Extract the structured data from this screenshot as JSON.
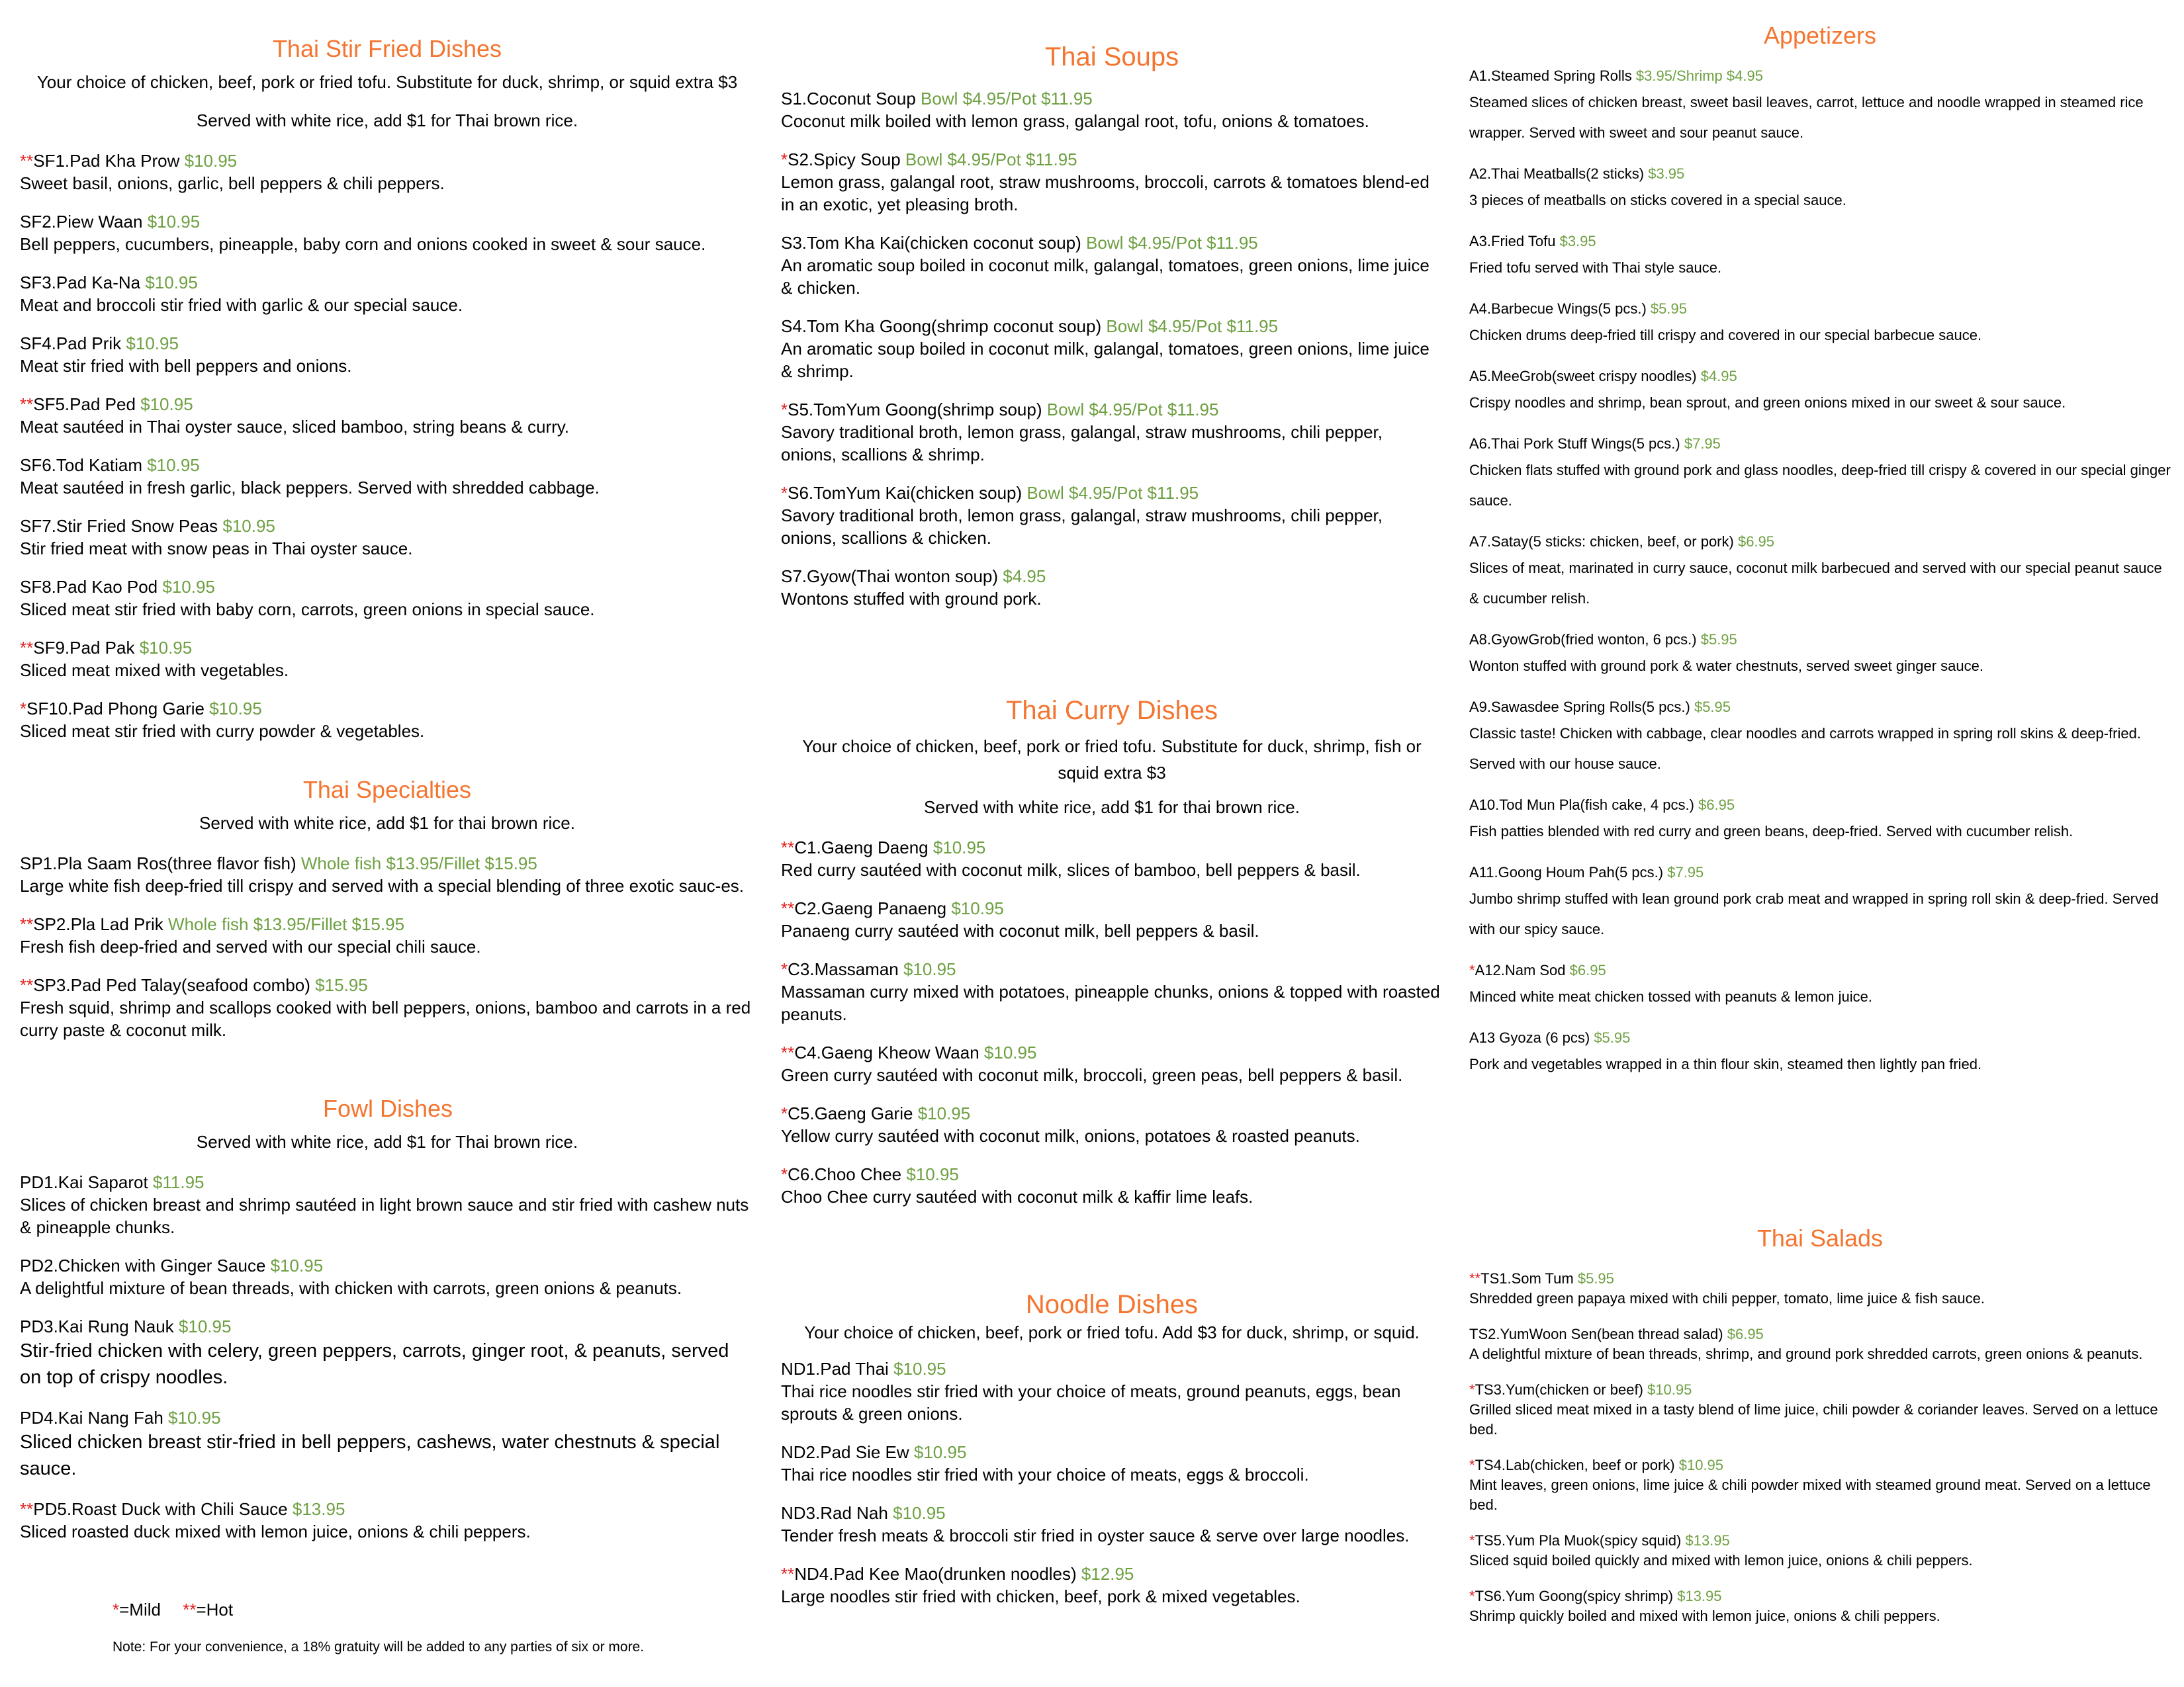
{
  "stir_fried": {
    "title": "Thai Stir Fried Dishes",
    "note1": "Your choice of chicken, beef, pork or fried tofu. Substitute for duck, shrimp, or squid extra $3",
    "note2": "Served with white rice, add $1 for Thai brown rice.",
    "items": [
      {
        "star": "**",
        "name": "SF1.Pad Kha Prow",
        "price": "$10.95",
        "desc": "Sweet basil, onions, garlic, bell peppers & chili peppers."
      },
      {
        "star": "",
        "name": "SF2.Piew Waan",
        "price": "$10.95",
        "desc": "Bell peppers, cucumbers, pineapple, baby corn and onions cooked in sweet & sour sauce."
      },
      {
        "star": "",
        "name": "SF3.Pad Ka-Na",
        "price": "$10.95",
        "desc": "Meat and broccoli stir fried with garlic & our special sauce."
      },
      {
        "star": "",
        "name": "SF4.Pad Prik",
        "price": "$10.95",
        "desc": "Meat stir fried with bell peppers and onions."
      },
      {
        "star": "**",
        "name": "SF5.Pad Ped",
        "price": "$10.95",
        "desc": "Meat sautéed in Thai oyster sauce, sliced bamboo, string beans & curry."
      },
      {
        "star": "",
        "name": "SF6.Tod Katiam",
        "price": "$10.95",
        "desc": "Meat sautéed in fresh garlic, black peppers.  Served with shredded cabbage."
      },
      {
        "star": "",
        "name": "SF7.Stir Fried Snow Peas",
        "price": "$10.95",
        "desc": "Stir fried meat with snow peas in Thai oyster sauce."
      },
      {
        "star": "",
        "name": "SF8.Pad Kao Pod",
        "price": "$10.95",
        "desc": "Sliced meat stir fried with baby corn, carrots, green onions in special sauce."
      },
      {
        "star": "**",
        "name": "SF9.Pad Pak",
        "price": "$10.95",
        "desc": "Sliced meat mixed with vegetables."
      },
      {
        "star": "*",
        "name": "SF10.Pad Phong Garie",
        "price": "$10.95",
        "desc": "Sliced meat stir fried with curry powder & vegetables."
      }
    ]
  },
  "specialties": {
    "title": "Thai Specialties",
    "note": "Served with white rice, add $1 for thai brown rice.",
    "items": [
      {
        "star": "",
        "name": "SP1.Pla Saam Ros(three flavor fish)",
        "price": "Whole fish $13.95/Fillet $15.95",
        "desc": "Large white fish deep-fried till crispy and served with a special blending of three exotic sauc-es."
      },
      {
        "star": "**",
        "name": "SP2.Pla Lad Prik",
        "price": "Whole fish $13.95/Fillet $15.95",
        "desc": "Fresh fish deep-fried and served with our special chili sauce."
      },
      {
        "star": "**",
        "name": "SP3.Pad Ped Talay(seafood combo)",
        "price": "$15.95",
        "desc": "Fresh squid, shrimp and scallops cooked with bell peppers, onions, bamboo and carrots in a red curry paste & coconut milk."
      }
    ]
  },
  "fowl": {
    "title": "Fowl Dishes",
    "note": "Served with white rice, add $1 for Thai brown rice.",
    "items": [
      {
        "star": "",
        "name": "PD1.Kai Saparot",
        "price": "$11.95",
        "desc": "Slices of chicken breast and shrimp sautéed in light brown sauce and stir fried with cashew nuts & pineapple chunks."
      },
      {
        "star": "",
        "name": "PD2.Chicken with Ginger Sauce",
        "price": "$10.95",
        "desc": "A delightful mixture of bean threads, with chicken with carrots, green onions & peanuts."
      },
      {
        "star": "",
        "name": "PD3.Kai Rung Nauk",
        "price": "$10.95",
        "desc": "Stir-fried chicken with celery, green peppers, carrots, ginger root, & peanuts, served on top of crispy noodles."
      },
      {
        "star": "",
        "name": "PD4.Kai Nang Fah",
        "price": "$10.95",
        "desc": "Sliced chicken breast stir-fried in bell peppers, cashews, water chestnuts & special sauce."
      },
      {
        "star": "**",
        "name": "PD5.Roast Duck with Chili Sauce",
        "price": "$13.95",
        "desc": "Sliced roasted duck mixed with lemon juice, onions & chili peppers."
      }
    ]
  },
  "legend": {
    "mild_star": "*",
    "mild": "=Mild",
    "hot_star": "**",
    "hot": "=Hot"
  },
  "footnote": "Note: For your convenience, a 18% gratuity will be added to any parties of six or more.",
  "soups": {
    "title": "Thai Soups",
    "items": [
      {
        "star": "",
        "name": "S1.Coconut Soup",
        "price": "Bowl $4.95/Pot $11.95",
        "desc": "Coconut milk boiled with lemon grass, galangal root, tofu, onions & tomatoes."
      },
      {
        "star": "*",
        "name": "S2.Spicy Soup",
        "price": "Bowl $4.95/Pot $11.95",
        "desc": "Lemon grass, galangal root, straw mushrooms, broccoli, carrots & tomatoes blend-ed in an exotic, yet pleasing broth."
      },
      {
        "star": "",
        "name": "S3.Tom Kha Kai(chicken coconut soup)",
        "price": "Bowl $4.95/Pot $11.95",
        "desc": "An aromatic soup boiled in coconut milk, galangal, tomatoes, green onions, lime juice & chicken."
      },
      {
        "star": "",
        "name": "S4.Tom Kha Goong(shrimp coconut soup)",
        "price": "Bowl $4.95/Pot $11.95",
        "desc": "An aromatic soup boiled in coconut milk, galangal, tomatoes, green onions, lime juice & shrimp."
      },
      {
        "star": "*",
        "name": "S5.TomYum Goong(shrimp soup)",
        "price": "Bowl $4.95/Pot $11.95",
        "desc": "Savory traditional broth, lemon grass, galangal, straw mushrooms, chili pepper, onions, scallions & shrimp."
      },
      {
        "star": "*",
        "name": "S6.TomYum Kai(chicken soup)",
        "price": "Bowl $4.95/Pot $11.95",
        "desc": "Savory traditional broth, lemon grass, galangal, straw mushrooms, chili pepper, onions, scallions & chicken."
      },
      {
        "star": "",
        "name": "S7.Gyow(Thai wonton soup)",
        "price": "$4.95",
        "desc": "Wontons stuffed with ground pork."
      }
    ]
  },
  "curry": {
    "title": "Thai Curry Dishes",
    "note1": "Your choice of chicken, beef, pork or fried tofu. Substitute for duck, shrimp, fish or squid extra $3",
    "note2": "Served with white rice, add $1 for thai brown rice.",
    "items": [
      {
        "star": "**",
        "name": "C1.Gaeng Daeng",
        "price": "$10.95",
        "desc": "Red curry sautéed with coconut milk, slices of bamboo, bell peppers & basil."
      },
      {
        "star": "**",
        "name": "C2.Gaeng Panaeng",
        "price": "$10.95",
        "desc": "Panaeng curry sautéed with coconut milk, bell peppers & basil."
      },
      {
        "star": "*",
        "name": "C3.Massaman",
        "price": "$10.95",
        "desc": "Massaman curry mixed with potatoes, pineapple chunks, onions & topped with roasted peanuts."
      },
      {
        "star": "**",
        "name": "C4.Gaeng Kheow Waan",
        "price": "$10.95",
        "desc": "Green curry sautéed with coconut milk, broccoli, green peas, bell peppers & basil."
      },
      {
        "star": "*",
        "name": "C5.Gaeng Garie",
        "price": "$10.95",
        "desc": "Yellow curry sautéed with coconut milk, onions, potatoes & roasted peanuts."
      },
      {
        "star": "*",
        "name": "C6.Choo Chee",
        "price": "$10.95",
        "desc": "Choo Chee curry sautéed with coconut milk & kaffir lime leafs."
      }
    ]
  },
  "noodle": {
    "title": "Noodle Dishes",
    "note": "Your choice of chicken, beef, pork or fried tofu.  Add $3 for duck, shrimp, or squid.",
    "items": [
      {
        "star": "",
        "name": "ND1.Pad Thai",
        "price": "$10.95",
        "desc": "Thai rice noodles stir fried with your choice of meats, ground peanuts, eggs, bean sprouts & green onions."
      },
      {
        "star": "",
        "name": "ND2.Pad Sie Ew",
        "price": "$10.95",
        "desc": "Thai rice noodles stir fried with your choice of meats, eggs & broccoli."
      },
      {
        "star": "",
        "name": "ND3.Rad Nah",
        "price": "$10.95",
        "desc": "Tender fresh meats & broccoli stir fried in oyster sauce & serve over large noodles."
      },
      {
        "star": "**",
        "name": "ND4.Pad Kee Mao(drunken noodles)",
        "price": "$12.95",
        "desc": "Large noodles stir fried with chicken, beef, pork & mixed vegetables."
      }
    ]
  },
  "appetizers": {
    "title": "Appetizers",
    "items": [
      {
        "star": "",
        "name": "A1.Steamed Spring Rolls",
        "price": "$3.95/Shrimp $4.95",
        "desc": "Steamed slices of chicken breast, sweet basil leaves, carrot, lettuce and noodle wrapped in steamed rice wrapper. Served with sweet and sour peanut sauce."
      },
      {
        "star": "",
        "name": "A2.Thai Meatballs(2 sticks)",
        "price": "$3.95",
        "desc": "3 pieces of meatballs on sticks covered in a special sauce."
      },
      {
        "star": "",
        "name": "A3.Fried Tofu",
        "price": "$3.95",
        "desc": "Fried tofu served with Thai style sauce."
      },
      {
        "star": "",
        "name": "A4.Barbecue Wings(5 pcs.)",
        "price": "$5.95",
        "desc": "Chicken drums deep-fried till crispy and covered in our special barbecue sauce."
      },
      {
        "star": "",
        "name": "A5.MeeGrob(sweet crispy noodles)",
        "price": "$4.95",
        "desc": "Crispy noodles and shrimp, bean sprout, and green onions mixed in our sweet & sour sauce."
      },
      {
        "star": "",
        "name": "A6.Thai Pork Stuff Wings(5 pcs.)",
        "price": "$7.95",
        "desc": "Chicken flats stuffed with ground pork and glass noodles, deep-fried till crispy & covered in our special ginger sauce."
      },
      {
        "star": "",
        "name": "A7.Satay(5 sticks: chicken, beef, or pork)",
        "price": "$6.95",
        "desc": "Slices of meat, marinated in curry sauce, coconut milk barbecued and served with our special peanut sauce & cucumber relish."
      },
      {
        "star": "",
        "name": "A8.GyowGrob(fried wonton, 6 pcs.)",
        "price": "$5.95",
        "desc": "Wonton stuffed with ground pork & water chestnuts, served sweet ginger sauce."
      },
      {
        "star": "",
        "name": "A9.Sawasdee Spring Rolls(5 pcs.)",
        "price": "$5.95",
        "desc": "Classic taste! Chicken with cabbage, clear noodles and carrots wrapped in spring roll skins & deep-fried.  Served with our house sauce."
      },
      {
        "star": "",
        "name": "A10.Tod Mun Pla(fish cake, 4 pcs.)",
        "price": "$6.95",
        "desc": "Fish patties blended with red curry and green beans, deep-fried.  Served with cucumber relish."
      },
      {
        "star": "",
        "name": "A11.Goong Houm Pah(5 pcs.)",
        "price": "$7.95",
        "desc": "Jumbo shrimp stuffed with lean ground pork crab meat and wrapped in spring roll skin & deep-fried. Served with our  spicy sauce."
      },
      {
        "star": "*",
        "name": "A12.Nam Sod",
        "price": "$6.95",
        "desc": "Minced white meat chicken tossed with peanuts & lemon juice."
      },
      {
        "star": "",
        "name": "A13 Gyoza (6 pcs)",
        "price": "$5.95",
        "desc": "Pork and vegetables wrapped in a thin flour skin, steamed then lightly pan fried."
      }
    ]
  },
  "salads": {
    "title": "Thai Salads",
    "items": [
      {
        "star": "**",
        "name": "TS1.Som Tum",
        "price": "$5.95",
        "desc": "Shredded green papaya mixed with chili pepper, tomato, lime juice & fish sauce."
      },
      {
        "star": "",
        "name": "TS2.YumWoon Sen(bean thread salad)",
        "price": "$6.95",
        "desc": "A delightful mixture of bean threads, shrimp, and ground pork shredded carrots, green onions & peanuts."
      },
      {
        "star": "*",
        "name": "TS3.Yum(chicken or beef)",
        "price": "$10.95",
        "desc": "Grilled sliced meat mixed in a tasty blend of lime juice, chili powder & coriander leaves.  Served on a lettuce bed."
      },
      {
        "star": "*",
        "name": "TS4.Lab(chicken, beef or pork)",
        "price": "$10.95",
        "desc": "Mint leaves, green onions, lime juice & chili powder mixed with steamed ground meat.  Served on a lettuce bed."
      },
      {
        "star": "*",
        "name": "TS5.Yum Pla Muok(spicy squid)",
        "price": "$13.95",
        "desc": "Sliced squid boiled quickly and mixed with lemon juice, onions & chili peppers."
      },
      {
        "star": "*",
        "name": "TS6.Yum Goong(spicy shrimp)",
        "price": "$13.95",
        "desc": "Shrimp quickly boiled and mixed with lemon juice, onions & chili peppers."
      }
    ]
  },
  "colors": {
    "heading": "#f47530",
    "price": "#6ea042",
    "star": "#e0201d"
  }
}
